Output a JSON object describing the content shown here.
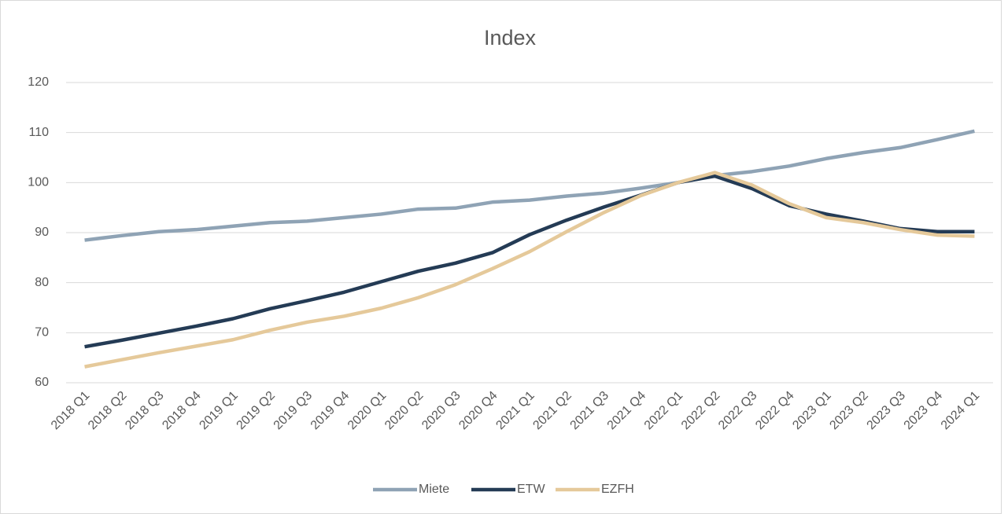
{
  "chart_data": {
    "type": "line",
    "title": "Index",
    "categories": [
      "2018 Q1",
      "2018 Q2",
      "2018 Q3",
      "2018 Q4",
      "2019 Q1",
      "2019 Q2",
      "2019 Q3",
      "2019 Q4",
      "2020 Q1",
      "2020 Q2",
      "2020 Q3",
      "2020 Q4",
      "2021 Q1",
      "2021 Q2",
      "2021 Q3",
      "2021 Q4",
      "2022 Q1",
      "2022 Q2",
      "2022 Q3",
      "2022 Q4",
      "2023 Q1",
      "2023 Q2",
      "2023 Q3",
      "2023 Q4",
      "2024 Q1"
    ],
    "series": [
      {
        "name": "Miete",
        "color": "#8fa3b5",
        "values": [
          88.5,
          89.4,
          90.2,
          90.6,
          91.3,
          92.0,
          92.3,
          93.0,
          93.7,
          94.7,
          94.9,
          96.1,
          96.5,
          97.3,
          97.9,
          98.9,
          100,
          101.4,
          102.2,
          103.3,
          104.8,
          106.0,
          107.0,
          108.6,
          110.3
        ]
      },
      {
        "name": "ETW",
        "color": "#243b55",
        "values": [
          67.2,
          68.5,
          69.9,
          71.3,
          72.8,
          74.8,
          76.4,
          78.1,
          80.2,
          82.3,
          83.9,
          86.0,
          89.6,
          92.5,
          95.1,
          97.5,
          100,
          101.3,
          98.8,
          95.4,
          93.7,
          92.3,
          90.8,
          90.2,
          90.2
        ]
      },
      {
        "name": "EZFH",
        "color": "#e5c99a",
        "values": [
          63.2,
          64.6,
          66.0,
          67.3,
          68.6,
          70.5,
          72.1,
          73.3,
          74.9,
          77.0,
          79.6,
          82.8,
          86.2,
          90.2,
          94.0,
          97.4,
          100,
          102.0,
          99.5,
          95.8,
          93.0,
          92.0,
          90.6,
          89.5,
          89.3
        ]
      }
    ],
    "ylim": [
      60,
      120
    ],
    "yticks": [
      60,
      70,
      80,
      90,
      100,
      110,
      120
    ],
    "grid": true,
    "legend": "bottom"
  }
}
